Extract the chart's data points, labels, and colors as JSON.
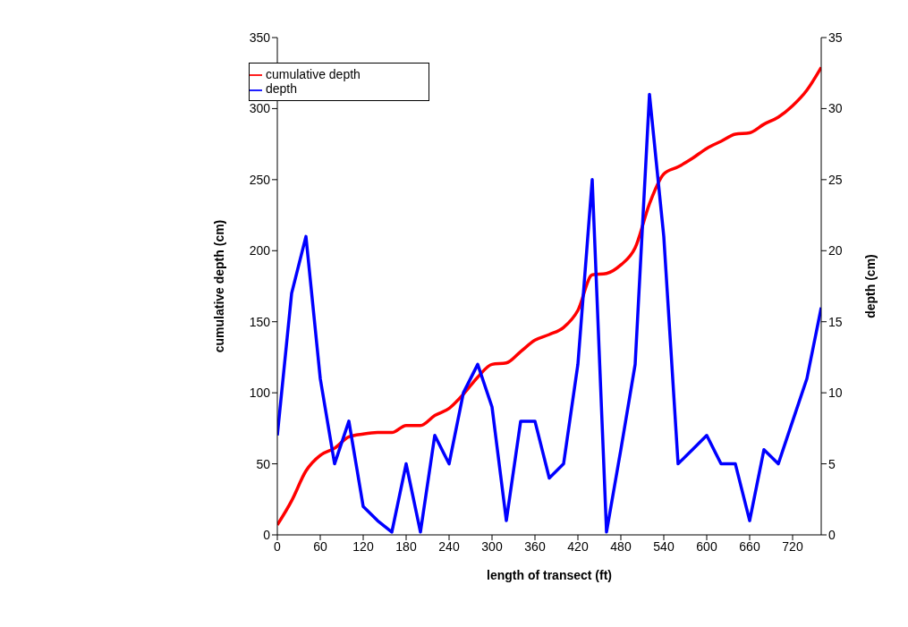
{
  "chart_data": {
    "type": "line",
    "xlabel": "length of transect (ft)",
    "ylabel": "cumulative depth (cm)",
    "y2label": "depth (cm)",
    "x": [
      0,
      20,
      40,
      60,
      80,
      100,
      120,
      140,
      160,
      180,
      200,
      220,
      240,
      260,
      280,
      300,
      320,
      340,
      360,
      380,
      400,
      420,
      440,
      460,
      480,
      500,
      520,
      540,
      560,
      580,
      600,
      620,
      640,
      660,
      680,
      700,
      720,
      740,
      760
    ],
    "series": [
      {
        "name": "cumulative depth",
        "color": "#ff0000",
        "values": [
          7,
          24,
          45,
          56,
          61,
          69,
          71,
          72,
          72,
          77,
          77,
          84,
          89,
          99,
          111,
          120,
          121,
          129,
          137,
          141,
          146,
          158,
          183,
          184,
          190,
          202,
          233,
          254,
          259,
          265,
          272,
          277,
          282,
          283,
          289,
          294,
          302,
          313,
          329
        ]
      },
      {
        "name": "depth",
        "color": "#0000ff",
        "axis": "y2",
        "values": [
          7,
          17,
          21,
          11,
          5,
          8,
          2,
          1,
          0.2,
          5,
          0.2,
          7,
          5,
          10,
          12,
          9,
          1,
          8,
          8,
          4,
          5,
          12,
          25,
          0.2,
          6,
          12,
          31,
          21,
          5,
          6,
          7,
          5,
          5,
          1,
          6,
          5,
          8,
          11,
          16
        ]
      }
    ],
    "xlim": [
      0,
      760
    ],
    "xticks": [
      0,
      60,
      120,
      180,
      240,
      300,
      360,
      420,
      480,
      540,
      600,
      660,
      720
    ],
    "ylim": [
      0,
      350
    ],
    "yticks": [
      0,
      50,
      100,
      150,
      200,
      250,
      300,
      350
    ],
    "y2lim": [
      0,
      35
    ],
    "y2ticks": [
      0,
      5,
      10,
      15,
      20,
      25,
      30,
      35
    ],
    "grid": false,
    "legend": "top left",
    "marker": "none",
    "line_style": "solid"
  }
}
